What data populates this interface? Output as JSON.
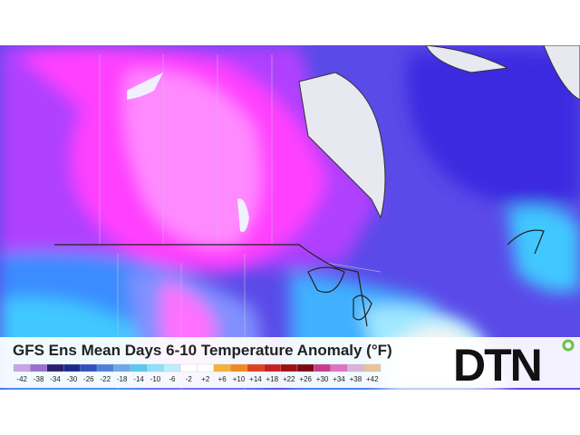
{
  "map": {
    "title": "GFS Ens Mean Days 6-10 Temperature Anomaly (°F)"
  },
  "legend": {
    "labels": [
      "-42",
      "-38",
      "-34",
      "-30",
      "-26",
      "-22",
      "-18",
      "-14",
      "-10",
      "-6",
      "-2",
      "+2",
      "+6",
      "+10",
      "+14",
      "+18",
      "+22",
      "+26",
      "+30",
      "+34",
      "+38",
      "+42"
    ],
    "colors": [
      "#c9a3e6",
      "#9b6fd0",
      "#2a1f6e",
      "#1a2a8a",
      "#3050c0",
      "#4f7fd8",
      "#6fa8e8",
      "#5cc8f0",
      "#8fe0f8",
      "#bdeefc",
      "#ffffff",
      "#ffffff",
      "#f6b13c",
      "#f08a1e",
      "#e0401e",
      "#c81e1e",
      "#a01010",
      "#7a0a14",
      "#c83c8c",
      "#e070c8",
      "#d8b4d8",
      "#e8c49c"
    ]
  },
  "logo": {
    "text": "DTN"
  }
}
